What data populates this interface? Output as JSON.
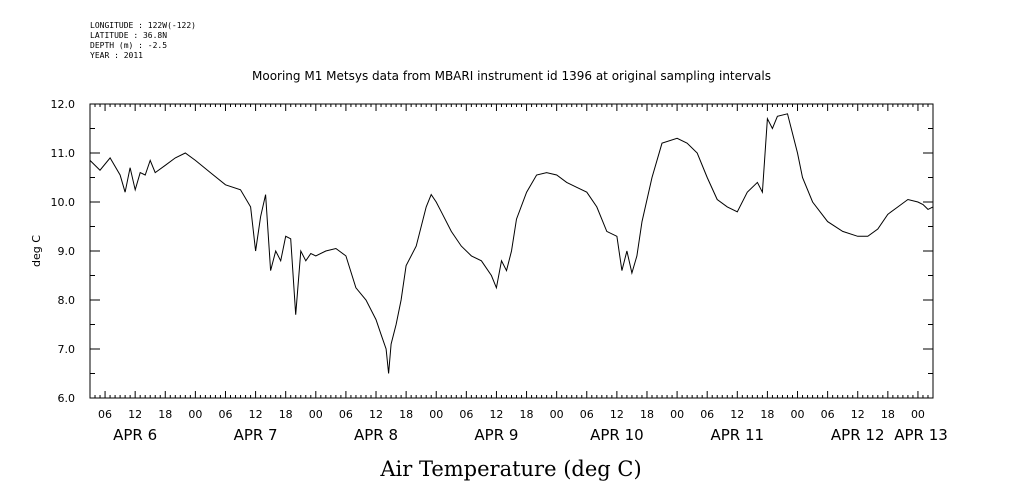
{
  "header": {
    "lines": [
      "LONGITUDE : 122W(-122)",
      "LATITUDE : 36.8N",
      "DEPTH (m) : -2.5",
      "YEAR : 2011"
    ]
  },
  "chart_data": {
    "type": "line",
    "title": "Mooring M1 Metsys data from MBARI instrument id 1396 at original sampling intervals",
    "xlabel": "Air Temperature (deg C)",
    "ylabel": "deg C",
    "ylim": [
      6.0,
      12.0
    ],
    "yticks": [
      "6.0",
      "7.0",
      "8.0",
      "9.0",
      "10.0",
      "11.0",
      "12.0"
    ],
    "xlim": [
      "2011-04-06 03:00",
      "2011-04-13 03:00"
    ],
    "hour_tick_labels": [
      "06",
      "12",
      "18",
      "00",
      "06",
      "12",
      "18",
      "00",
      "06",
      "12",
      "18",
      "00",
      "06",
      "12",
      "18",
      "00",
      "06",
      "12",
      "18",
      "00",
      "06",
      "12",
      "18",
      "00",
      "06",
      "12",
      "18",
      "00"
    ],
    "day_labels": [
      "APR 6",
      "APR 7",
      "APR 8",
      "APR 9",
      "APR 10",
      "APR 11",
      "APR 12",
      "APR 13"
    ],
    "grid": false,
    "series": [
      {
        "x": [
          "2011-04-06 03:00",
          "2011-04-06 05:00",
          "2011-04-06 07:00",
          "2011-04-06 09:00",
          "2011-04-06 10:00",
          "2011-04-06 11:00",
          "2011-04-06 12:00",
          "2011-04-06 13:00",
          "2011-04-06 14:00",
          "2011-04-06 15:00",
          "2011-04-06 16:00",
          "2011-04-06 18:00",
          "2011-04-06 20:00",
          "2011-04-06 22:00",
          "2011-04-07 00:00",
          "2011-04-07 03:00",
          "2011-04-07 06:00",
          "2011-04-07 09:00",
          "2011-04-07 11:00",
          "2011-04-07 12:00",
          "2011-04-07 13:00",
          "2011-04-07 14:00",
          "2011-04-07 15:00",
          "2011-04-07 16:00",
          "2011-04-07 17:00",
          "2011-04-07 18:00",
          "2011-04-07 19:00",
          "2011-04-07 20:00",
          "2011-04-07 21:00",
          "2011-04-07 22:00",
          "2011-04-07 23:00",
          "2011-04-08 00:00",
          "2011-04-08 02:00",
          "2011-04-08 04:00",
          "2011-04-08 06:00",
          "2011-04-08 08:00",
          "2011-04-08 10:00",
          "2011-04-08 12:00",
          "2011-04-08 13:00",
          "2011-04-08 14:00",
          "2011-04-08 14:30",
          "2011-04-08 15:00",
          "2011-04-08 16:00",
          "2011-04-08 17:00",
          "2011-04-08 18:00",
          "2011-04-08 20:00",
          "2011-04-08 22:00",
          "2011-04-08 23:00",
          "2011-04-09 00:00",
          "2011-04-09 01:00",
          "2011-04-09 03:00",
          "2011-04-09 05:00",
          "2011-04-09 07:00",
          "2011-04-09 09:00",
          "2011-04-09 11:00",
          "2011-04-09 12:00",
          "2011-04-09 13:00",
          "2011-04-09 14:00",
          "2011-04-09 15:00",
          "2011-04-09 16:00",
          "2011-04-09 18:00",
          "2011-04-09 20:00",
          "2011-04-09 22:00",
          "2011-04-10 00:00",
          "2011-04-10 02:00",
          "2011-04-10 04:00",
          "2011-04-10 06:00",
          "2011-04-10 08:00",
          "2011-04-10 10:00",
          "2011-04-10 12:00",
          "2011-04-10 13:00",
          "2011-04-10 14:00",
          "2011-04-10 15:00",
          "2011-04-10 16:00",
          "2011-04-10 17:00",
          "2011-04-10 19:00",
          "2011-04-10 21:00",
          "2011-04-11 00:00",
          "2011-04-11 02:00",
          "2011-04-11 04:00",
          "2011-04-11 06:00",
          "2011-04-11 08:00",
          "2011-04-11 10:00",
          "2011-04-11 12:00",
          "2011-04-11 14:00",
          "2011-04-11 16:00",
          "2011-04-11 17:00",
          "2011-04-11 18:00",
          "2011-04-11 19:00",
          "2011-04-11 20:00",
          "2011-04-11 22:00",
          "2011-04-12 00:00",
          "2011-04-12 01:00",
          "2011-04-12 03:00",
          "2011-04-12 06:00",
          "2011-04-12 09:00",
          "2011-04-12 12:00",
          "2011-04-12 14:00",
          "2011-04-12 16:00",
          "2011-04-12 18:00",
          "2011-04-12 20:00",
          "2011-04-12 22:00",
          "2011-04-13 00:00",
          "2011-04-13 01:00",
          "2011-04-13 02:00",
          "2011-04-13 03:00"
        ],
        "values": [
          10.85,
          10.65,
          10.9,
          10.55,
          10.2,
          10.7,
          10.25,
          10.6,
          10.55,
          10.85,
          10.6,
          10.75,
          10.9,
          11.0,
          10.85,
          10.6,
          10.35,
          10.25,
          9.9,
          9.0,
          9.7,
          10.15,
          8.6,
          9.0,
          8.8,
          9.3,
          9.25,
          7.7,
          9.0,
          8.8,
          8.95,
          8.9,
          9.0,
          9.05,
          8.9,
          8.25,
          8.0,
          7.6,
          7.3,
          7.0,
          6.5,
          7.1,
          7.5,
          8.0,
          8.7,
          9.1,
          9.9,
          10.15,
          10.0,
          9.8,
          9.4,
          9.1,
          8.9,
          8.8,
          8.5,
          8.25,
          8.8,
          8.6,
          9.0,
          9.65,
          10.2,
          10.55,
          10.6,
          10.55,
          10.4,
          10.3,
          10.2,
          9.9,
          9.4,
          9.3,
          8.6,
          9.0,
          8.55,
          8.9,
          9.6,
          10.5,
          11.2,
          11.3,
          11.2,
          11.0,
          10.5,
          10.05,
          9.9,
          9.8,
          10.2,
          10.4,
          10.2,
          11.7,
          11.5,
          11.75,
          11.8,
          11.0,
          10.5,
          10.0,
          9.6,
          9.4,
          9.3,
          9.3,
          9.45,
          9.75,
          9.9,
          10.05,
          10.0,
          9.95,
          9.85,
          9.9
        ]
      }
    ]
  }
}
